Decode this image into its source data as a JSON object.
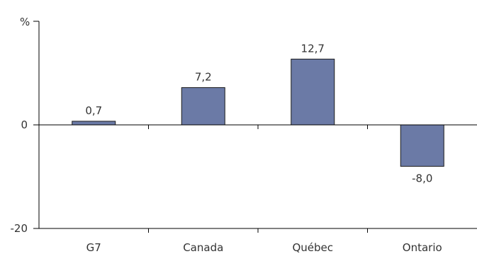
{
  "chart_data": {
    "type": "bar",
    "title": "",
    "xlabel": "",
    "ylabel": "%",
    "categories": [
      "G7",
      "Canada",
      "Québec",
      "Ontario"
    ],
    "values": [
      0.7,
      7.2,
      12.7,
      -8.0
    ],
    "data_labels": [
      "0,7",
      "7,2",
      "12,7",
      "-8,0"
    ],
    "yticks": [
      -20,
      0
    ],
    "ytick_labels": [
      "-20",
      "0"
    ],
    "ylim": [
      -20,
      20
    ],
    "grid": false,
    "bar_color": "#6b7aa6"
  }
}
